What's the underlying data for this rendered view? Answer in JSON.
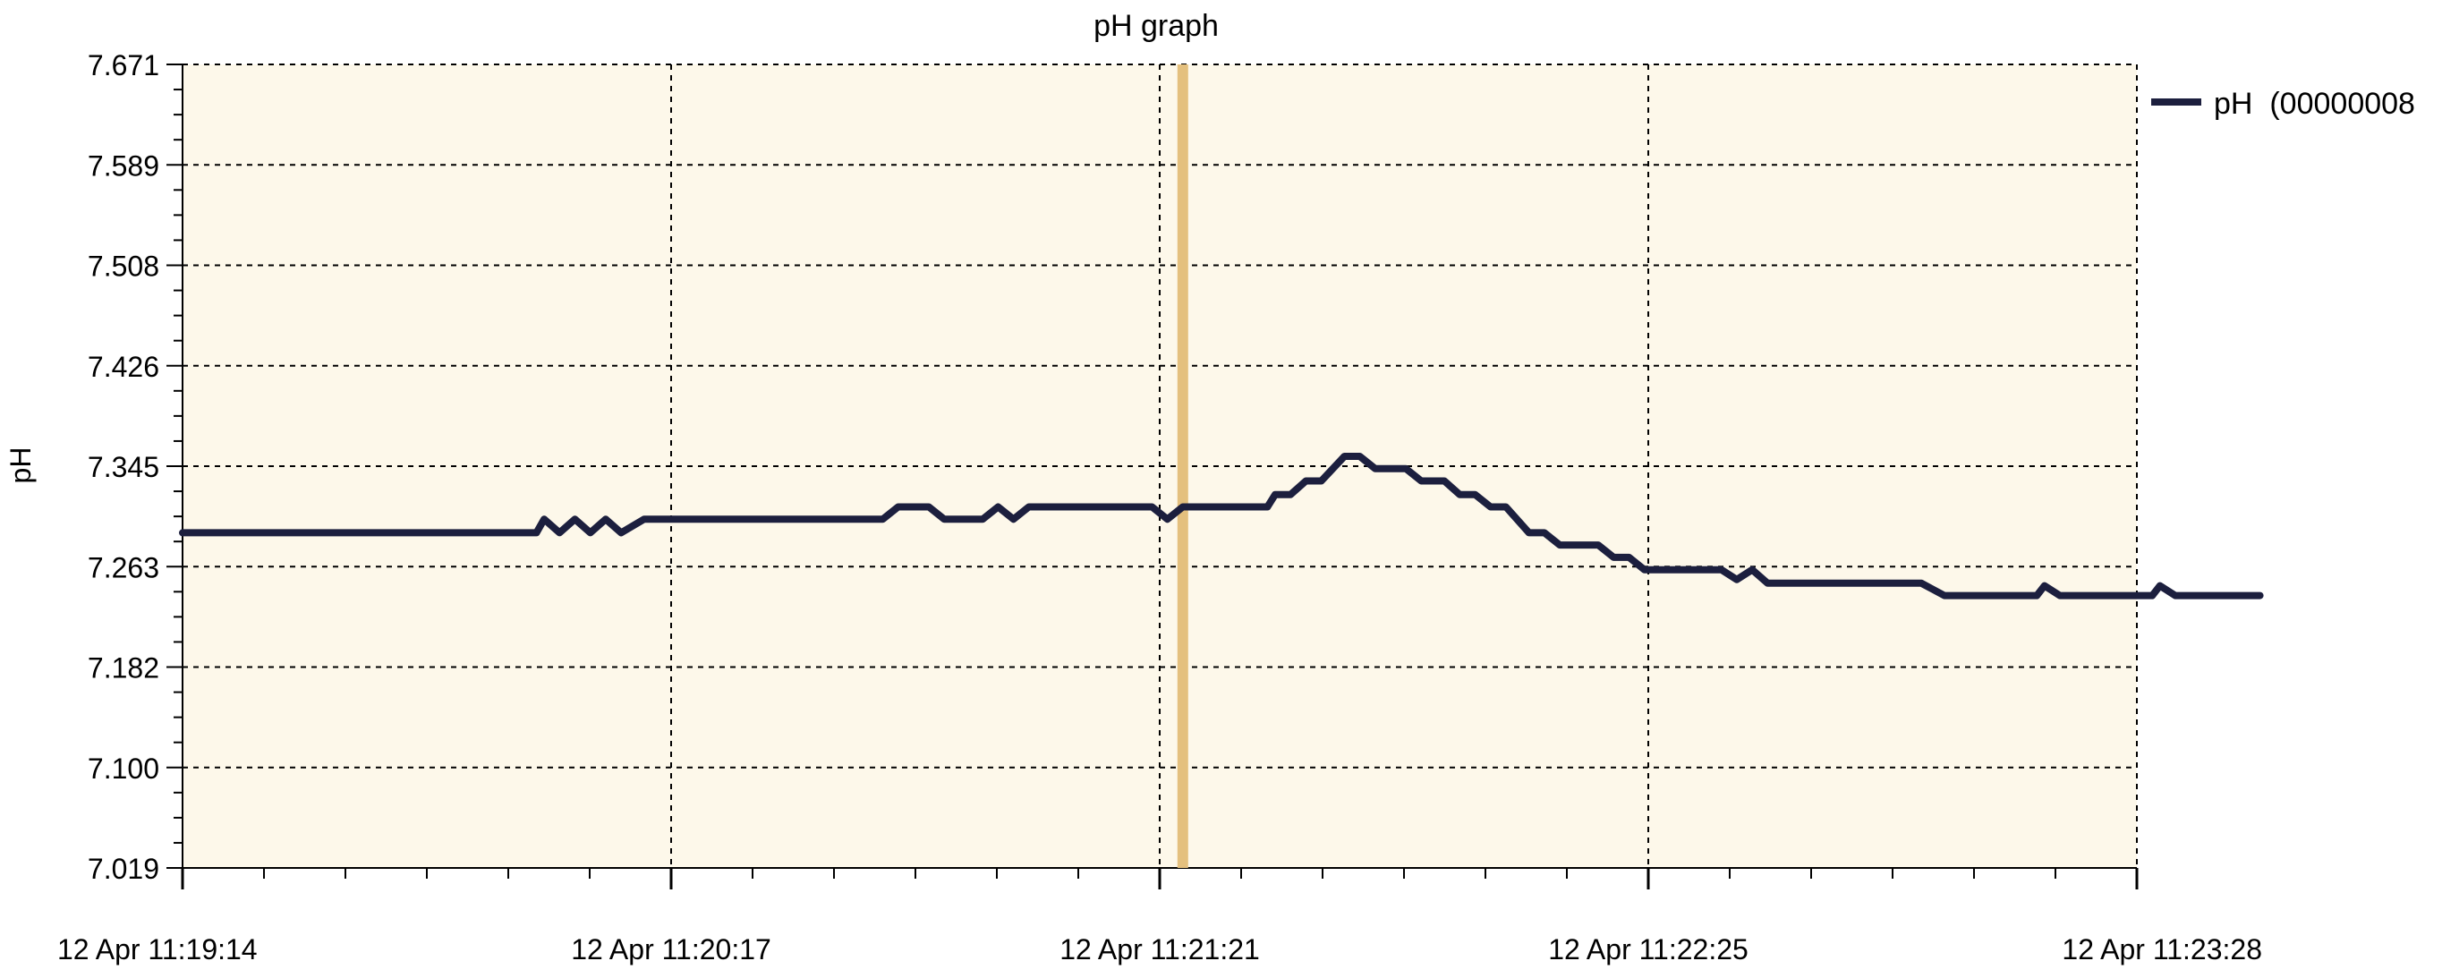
{
  "chart_data": {
    "type": "line",
    "title": "pH graph",
    "ylabel": "pH",
    "xlabel": "",
    "ylim": [
      7.019,
      7.671
    ],
    "yticks": [
      "7.671",
      "7.589",
      "7.508",
      "7.426",
      "7.345",
      "7.263",
      "7.182",
      "7.100",
      "7.019"
    ],
    "xlim": [
      "11:19:14",
      "11:23:28"
    ],
    "xticks": [
      "12 Apr 11:19:14",
      "12 Apr 11:20:17",
      "12 Apr 11:21:21",
      "12 Apr 11:22:25",
      "12 Apr 11:23:28"
    ],
    "grid": true,
    "legend_position": "top-right",
    "cursor_x": "11:21:24",
    "series": [
      {
        "name": "pH  (00000008",
        "color": "#1c1f3e",
        "points": [
          [
            "11:19:14",
            7.291
          ],
          [
            "11:20:00",
            7.291
          ],
          [
            "11:20:01",
            7.302
          ],
          [
            "11:20:03",
            7.291
          ],
          [
            "11:20:05",
            7.302
          ],
          [
            "11:20:07",
            7.291
          ],
          [
            "11:20:09",
            7.302
          ],
          [
            "11:20:11",
            7.291
          ],
          [
            "11:20:14",
            7.302
          ],
          [
            "11:20:29",
            7.302
          ],
          [
            "11:20:45",
            7.302
          ],
          [
            "11:20:47",
            7.312
          ],
          [
            "11:20:51",
            7.312
          ],
          [
            "11:20:53",
            7.302
          ],
          [
            "11:20:58",
            7.302
          ],
          [
            "11:21:00",
            7.312
          ],
          [
            "11:21:02",
            7.302
          ],
          [
            "11:21:04",
            7.312
          ],
          [
            "11:21:20",
            7.312
          ],
          [
            "11:21:22",
            7.302
          ],
          [
            "11:21:24",
            7.312
          ],
          [
            "11:21:33",
            7.312
          ],
          [
            "11:21:35",
            7.312
          ],
          [
            "11:21:36",
            7.322
          ],
          [
            "11:21:38",
            7.322
          ],
          [
            "11:21:40",
            7.333
          ],
          [
            "11:21:42",
            7.333
          ],
          [
            "11:21:45",
            7.353
          ],
          [
            "11:21:47",
            7.353
          ],
          [
            "11:21:49",
            7.343
          ],
          [
            "11:21:53",
            7.343
          ],
          [
            "11:21:55",
            7.333
          ],
          [
            "11:21:58",
            7.333
          ],
          [
            "11:22:00",
            7.322
          ],
          [
            "11:22:02",
            7.322
          ],
          [
            "11:22:04",
            7.312
          ],
          [
            "11:22:06",
            7.312
          ],
          [
            "11:22:09",
            7.291
          ],
          [
            "11:22:11",
            7.291
          ],
          [
            "11:22:13",
            7.281
          ],
          [
            "11:22:18",
            7.281
          ],
          [
            "11:22:20",
            7.271
          ],
          [
            "11:22:22",
            7.271
          ],
          [
            "11:22:24",
            7.261
          ],
          [
            "11:22:34",
            7.261
          ],
          [
            "11:22:36",
            7.253
          ],
          [
            "11:22:38",
            7.261
          ],
          [
            "11:22:40",
            7.25
          ],
          [
            "11:23:00",
            7.25
          ],
          [
            "11:23:03",
            7.24
          ],
          [
            "11:23:15",
            7.24
          ],
          [
            "11:23:16",
            7.248
          ],
          [
            "11:23:18",
            7.24
          ],
          [
            "11:23:30",
            7.24
          ],
          [
            "11:23:31",
            7.248
          ],
          [
            "11:23:33",
            7.24
          ],
          [
            "11:23:44",
            7.24
          ]
        ]
      }
    ]
  }
}
